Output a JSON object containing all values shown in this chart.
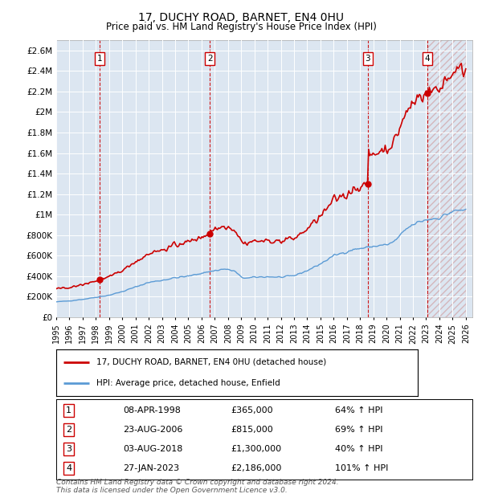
{
  "title": "17, DUCHY ROAD, BARNET, EN4 0HU",
  "subtitle": "Price paid vs. HM Land Registry's House Price Index (HPI)",
  "background_color": "#dce6f1",
  "grid_color": "#ffffff",
  "sale_dates_float": [
    1998.27,
    2006.64,
    2018.59,
    2023.07
  ],
  "sale_prices": [
    365000,
    815000,
    1300000,
    2186000
  ],
  "sale_labels": [
    "1",
    "2",
    "3",
    "4"
  ],
  "legend_red": "17, DUCHY ROAD, BARNET, EN4 0HU (detached house)",
  "legend_blue": "HPI: Average price, detached house, Enfield",
  "footer": "Contains HM Land Registry data © Crown copyright and database right 2024.\nThis data is licensed under the Open Government Licence v3.0.",
  "red_color": "#cc0000",
  "blue_color": "#5b9bd5",
  "ylim": [
    0,
    2700000
  ],
  "yticks": [
    0,
    200000,
    400000,
    600000,
    800000,
    1000000,
    1200000,
    1400000,
    1600000,
    1800000,
    2000000,
    2200000,
    2400000,
    2600000
  ],
  "ytick_labels": [
    "£0",
    "£200K",
    "£400K",
    "£600K",
    "£800K",
    "£1M",
    "£1.2M",
    "£1.4M",
    "£1.6M",
    "£1.8M",
    "£2M",
    "£2.2M",
    "£2.4M",
    "£2.6M"
  ],
  "table_rows": [
    [
      "1",
      "08-APR-1998",
      "£365,000",
      "64% ↑ HPI"
    ],
    [
      "2",
      "23-AUG-2006",
      "£815,000",
      "69% ↑ HPI"
    ],
    [
      "3",
      "03-AUG-2018",
      "£1,300,000",
      "40% ↑ HPI"
    ],
    [
      "4",
      "27-JAN-2023",
      "£2,186,000",
      "101% ↑ HPI"
    ]
  ]
}
